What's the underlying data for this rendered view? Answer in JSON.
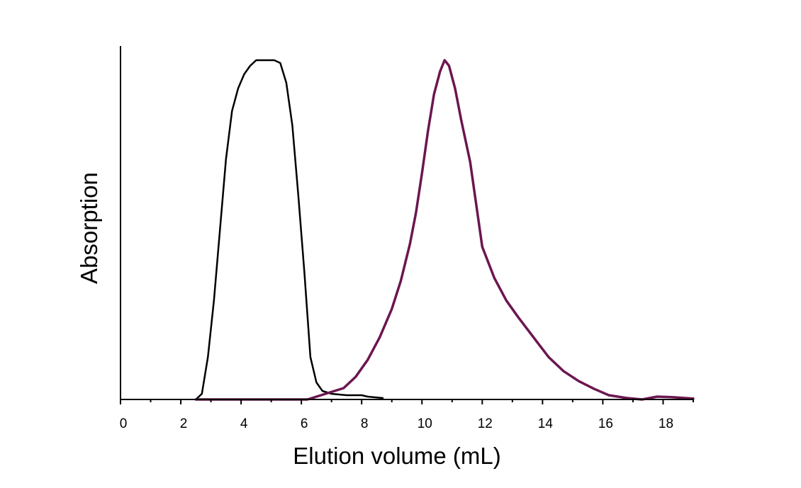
{
  "chart_data": {
    "type": "line",
    "title": "",
    "xlabel": "Elution volume (mL)",
    "ylabel": "Absorption",
    "xlim": [
      0,
      19
    ],
    "ylim": [
      0,
      1.25
    ],
    "xticks": [
      0,
      2,
      4,
      6,
      8,
      10,
      12,
      14,
      16,
      18
    ],
    "xtick_labels": [
      "0",
      "2",
      "4",
      "6",
      "8",
      "10",
      "12",
      "14",
      "16",
      "18"
    ],
    "grid": false,
    "legend": "none",
    "series": [
      {
        "color": "#000000",
        "x": [
          2.5,
          2.7,
          2.9,
          3.1,
          3.3,
          3.5,
          3.7,
          3.9,
          4.1,
          4.3,
          4.5,
          4.7,
          4.9,
          5.1,
          5.3,
          5.5,
          5.7,
          5.9,
          6.1,
          6.3,
          6.5,
          6.7,
          7.0,
          7.5,
          8.0,
          8.2,
          8.7
        ],
        "y": [
          0.0,
          0.02,
          0.15,
          0.35,
          0.6,
          0.85,
          1.02,
          1.1,
          1.15,
          1.18,
          1.2,
          1.2,
          1.2,
          1.2,
          1.19,
          1.12,
          0.97,
          0.72,
          0.45,
          0.15,
          0.06,
          0.03,
          0.02,
          0.015,
          0.015,
          0.01,
          0.005
        ]
      },
      {
        "color": "#6b1650",
        "x": [
          2.5,
          6.2,
          6.8,
          7.4,
          7.8,
          8.2,
          8.6,
          9.0,
          9.3,
          9.6,
          9.8,
          10.0,
          10.2,
          10.4,
          10.6,
          10.75,
          10.9,
          11.1,
          11.3,
          11.6,
          12.0,
          12.4,
          12.8,
          13.2,
          13.7,
          14.2,
          14.7,
          15.2,
          15.7,
          16.2,
          16.8,
          17.3,
          17.8,
          18.3,
          19.0
        ],
        "y": [
          0.0,
          0.0,
          0.02,
          0.04,
          0.08,
          0.14,
          0.22,
          0.32,
          0.42,
          0.55,
          0.66,
          0.8,
          0.95,
          1.08,
          1.16,
          1.2,
          1.18,
          1.1,
          0.99,
          0.84,
          0.54,
          0.43,
          0.35,
          0.29,
          0.22,
          0.15,
          0.1,
          0.065,
          0.038,
          0.015,
          0.005,
          0.0,
          0.01,
          0.008,
          0.003
        ]
      }
    ]
  }
}
